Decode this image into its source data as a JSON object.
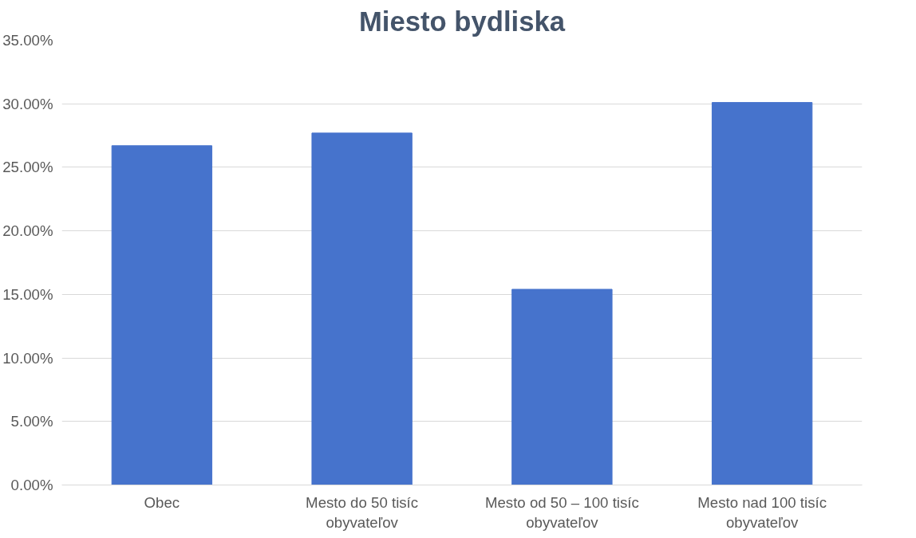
{
  "chart_data": {
    "type": "bar",
    "title": "Miesto bydliska",
    "categories": [
      "Obec",
      "Mesto do 50 tisíc obyvateľov",
      "Mesto od 50 – 100 tisíc obyvateľov",
      "Mesto nad 100 tisíc obyvateľov"
    ],
    "values": [
      26.7,
      27.7,
      15.4,
      30.1
    ],
    "color": "#4673cc",
    "ylim": [
      0,
      35
    ],
    "yticks": [
      {
        "value": 0,
        "label": "0.00%"
      },
      {
        "value": 5,
        "label": "5.00%"
      },
      {
        "value": 10,
        "label": "10.00%"
      },
      {
        "value": 15,
        "label": "15.00%"
      },
      {
        "value": 20,
        "label": "20.00%"
      },
      {
        "value": 25,
        "label": "25.00%"
      },
      {
        "value": 30,
        "label": "30.00%"
      },
      {
        "value": 35,
        "label": "35.00%"
      }
    ],
    "grid": "y"
  }
}
